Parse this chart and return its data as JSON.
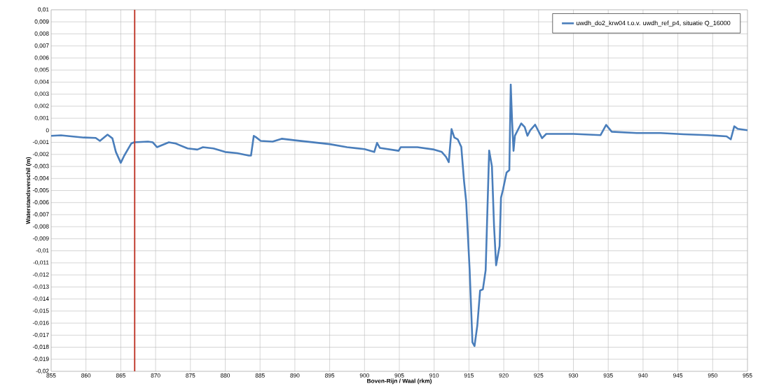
{
  "chart_data": {
    "type": "line",
    "xlabel": "Boven-Rijn / Waal (rkm)",
    "ylabel": "Waterstandsverschil (m)",
    "xlim": [
      855,
      955
    ],
    "ylim": [
      -0.02,
      0.01
    ],
    "xticks": [
      855,
      860,
      865,
      870,
      875,
      880,
      885,
      890,
      895,
      900,
      905,
      910,
      915,
      920,
      925,
      930,
      935,
      940,
      945,
      950,
      955
    ],
    "yticks": [
      {
        "value": 0.01,
        "label": "0,01"
      },
      {
        "value": 0.009,
        "label": "0,009"
      },
      {
        "value": 0.008,
        "label": "0,008"
      },
      {
        "value": 0.007,
        "label": "0,007"
      },
      {
        "value": 0.006,
        "label": "0,006"
      },
      {
        "value": 0.005,
        "label": "0,005"
      },
      {
        "value": 0.004,
        "label": "0,004"
      },
      {
        "value": 0.003,
        "label": "0,003"
      },
      {
        "value": 0.002,
        "label": "0,002"
      },
      {
        "value": 0.001,
        "label": "0,001"
      },
      0,
      {
        "value": -0.001,
        "label": "-0,001"
      },
      {
        "value": -0.002,
        "label": "-0,002"
      },
      {
        "value": -0.003,
        "label": "-0,003"
      },
      {
        "value": -0.004,
        "label": "-0,004"
      },
      {
        "value": -0.005,
        "label": "-0,005"
      },
      {
        "value": -0.006,
        "label": "-0,006"
      },
      {
        "value": -0.007,
        "label": "-0,007"
      },
      {
        "value": -0.008,
        "label": "-0,008"
      },
      {
        "value": -0.009,
        "label": "-0,009"
      },
      {
        "value": -0.01,
        "label": "-0,01"
      },
      {
        "value": -0.011,
        "label": "-0,011"
      },
      {
        "value": -0.012,
        "label": "-0,012"
      },
      {
        "value": -0.013,
        "label": "-0,013"
      },
      {
        "value": -0.014,
        "label": "-0,014"
      },
      {
        "value": -0.015,
        "label": "-0,015"
      },
      {
        "value": -0.016,
        "label": "-0,016"
      },
      {
        "value": -0.017,
        "label": "-0,017"
      },
      {
        "value": -0.018,
        "label": "-0,018"
      },
      {
        "value": -0.019,
        "label": "-0,019"
      },
      {
        "value": -0.02,
        "label": "-0,02"
      }
    ],
    "grid": true,
    "legend": "top right",
    "marker": "none",
    "line_style": "solid",
    "ref_lines": [
      {
        "axis": "x",
        "value": 867,
        "color": "#c0392b"
      }
    ],
    "series": [
      {
        "name": "uwdh_do2_krw04 t.o.v. uwdh_ref_p4, situatie Q_16000",
        "color": "#4a7ebb",
        "x": [
          855,
          856.4,
          859.7,
          861.4,
          862,
          863.1,
          863.8,
          864.3,
          865,
          865.5,
          866.5,
          866.9,
          868.9,
          869.6,
          870.2,
          871.9,
          872.9,
          874.6,
          876,
          876.8,
          878.3,
          880,
          881.7,
          883.4,
          883.7,
          884.1,
          884.4,
          885.1,
          886.8,
          888.1,
          890,
          895,
          897.5,
          900,
          901.4,
          901.8,
          902.2,
          904.9,
          905.2,
          907.6,
          910,
          911.1,
          911.7,
          912.1,
          912.5,
          912.9,
          913.4,
          913.9,
          914.3,
          914.6,
          915.1,
          915.5,
          915.8,
          916.2,
          916.6,
          917.0,
          917.4,
          917.9,
          918.3,
          918.6,
          918.9,
          919.4,
          919.6,
          919.9,
          920.4,
          920.8,
          921.0,
          921.2,
          921.4,
          921.6,
          922.5,
          923.0,
          923.4,
          923.8,
          924.5,
          925.5,
          926.1,
          930,
          933.9,
          934.7,
          935.5,
          939.1,
          942.5,
          945.8,
          949.2,
          952,
          952.6,
          953.1,
          953.6,
          955
        ],
        "values": [
          -0.00046,
          -0.00042,
          -0.0006,
          -0.00063,
          -0.00088,
          -0.00036,
          -0.00067,
          -0.0018,
          -0.0027,
          -0.0021,
          -0.0011,
          -0.001,
          -0.00094,
          -0.001,
          -0.0014,
          -0.001,
          -0.0011,
          -0.0015,
          -0.0016,
          -0.0014,
          -0.0015,
          -0.0018,
          -0.0019,
          -0.0021,
          -0.0021,
          -0.00046,
          -0.00057,
          -0.00088,
          -0.00094,
          -0.0007,
          -0.00083,
          -0.00115,
          -0.0014,
          -0.00156,
          -0.0018,
          -0.00104,
          -0.00146,
          -0.0017,
          -0.0014,
          -0.0014,
          -0.0016,
          -0.0018,
          -0.0022,
          -0.00265,
          0.0001,
          -0.0006,
          -0.00076,
          -0.00138,
          -0.00425,
          -0.0059,
          -0.0116,
          -0.0176,
          -0.0179,
          -0.0162,
          -0.0133,
          -0.0132,
          -0.0116,
          -0.00168,
          -0.003,
          -0.0079,
          -0.0112,
          -0.0096,
          -0.0056,
          -0.0049,
          -0.0035,
          -0.0033,
          0.0038,
          0.0007,
          -0.0017,
          -0.00045,
          0.00057,
          0.00027,
          -0.00045,
          0,
          0.00047,
          -0.00066,
          -0.0003,
          -0.0003,
          -0.0004,
          0.00045,
          -0.00012,
          -0.00023,
          -0.00023,
          -0.00033,
          -0.0004,
          -0.0005,
          -0.00075,
          0.00033,
          0.00012,
          0
        ]
      }
    ]
  }
}
